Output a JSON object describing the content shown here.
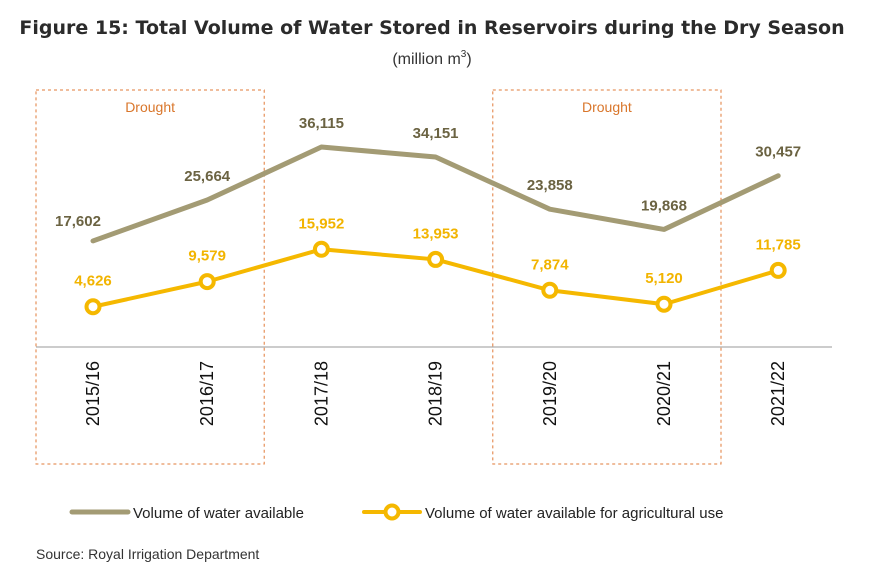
{
  "chart_data": {
    "type": "line",
    "title": "Figure 15: Total Volume of Water Stored in Reservoirs during the Dry Season",
    "subtitle_prefix": "(million m",
    "subtitle_sup": "3",
    "subtitle_suffix": ")",
    "categories": [
      "2015/16",
      "2016/17",
      "2017/18",
      "2018/19",
      "2019/20",
      "2020/21",
      "2021/22"
    ],
    "series": [
      {
        "name": "Volume of water available",
        "values": [
          17602,
          25664,
          36115,
          34151,
          23858,
          19868,
          30457
        ],
        "labels": [
          "17,602",
          "25,664",
          "36,115",
          "34,151",
          "23,858",
          "19,868",
          "30,457"
        ],
        "color": "#a39b74",
        "label_color": "#6b6342"
      },
      {
        "name": "Volume of water available for agricultural use",
        "values": [
          4626,
          9579,
          15952,
          13953,
          7874,
          5120,
          11785
        ],
        "labels": [
          "4,626",
          "9,579",
          "15,952",
          "13,953",
          "7,874",
          "5,120",
          "11,785"
        ],
        "color": "#f5b800",
        "label_color": "#f2b400"
      }
    ],
    "annotations": [
      {
        "text": "Drought",
        "from": "2015/16",
        "to": "2016/17"
      },
      {
        "text": "Drought",
        "from": "2019/20",
        "to": "2020/21"
      }
    ],
    "annotation_color": "#e07b39",
    "grid": false,
    "legend_position": "bottom"
  },
  "source": "Source: Royal Irrigation Department"
}
